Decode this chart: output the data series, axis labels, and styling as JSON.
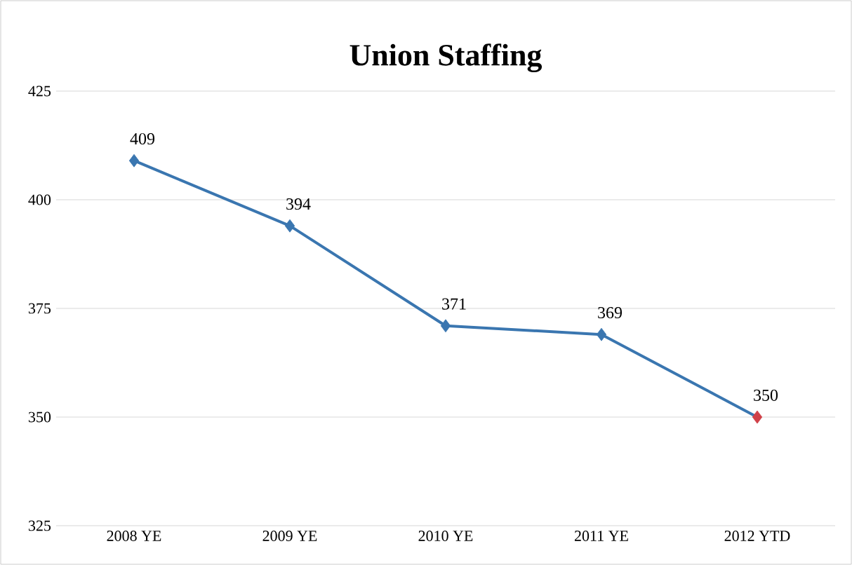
{
  "chart_data": {
    "type": "line",
    "title": "Union Staffing",
    "categories": [
      "2008 YE",
      "2009 YE",
      "2010 YE",
      "2011 YE",
      "2012 YTD"
    ],
    "values": [
      409,
      394,
      371,
      369,
      350
    ],
    "color": "#3a76b0",
    "colors": [
      "#3a76b0",
      "#3a76b0",
      "#3a76b0",
      "#3a76b0",
      "#d04048"
    ],
    "ylim": [
      325,
      425
    ],
    "yticks": [
      325,
      350,
      375,
      400,
      425
    ],
    "grid": "y",
    "marker": "diamond",
    "data_labels": true
  }
}
